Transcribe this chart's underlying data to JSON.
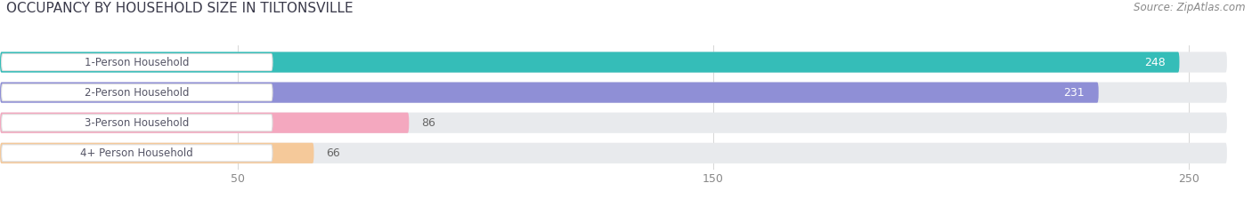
{
  "title": "OCCUPANCY BY HOUSEHOLD SIZE IN TILTONSVILLE",
  "source": "Source: ZipAtlas.com",
  "categories": [
    "1-Person Household",
    "2-Person Household",
    "3-Person Household",
    "4+ Person Household"
  ],
  "values": [
    248,
    231,
    86,
    66
  ],
  "bar_colors": [
    "#35bdb8",
    "#8f8fd6",
    "#f4a8bf",
    "#f5c99a"
  ],
  "bar_bg_color": "#e8eaed",
  "xlim_max": 258,
  "xticks": [
    50,
    150,
    250
  ],
  "figsize": [
    14.06,
    2.33
  ],
  "dpi": 100,
  "label_bg_color": "#ffffff",
  "title_fontsize": 11,
  "source_fontsize": 8.5,
  "bar_label_fontsize": 9,
  "category_fontsize": 8.5,
  "tick_fontsize": 9,
  "title_color": "#3a3a4a",
  "source_color": "#888888",
  "category_color": "#555566",
  "tick_color": "#888888",
  "value_color_inside": "#ffffff",
  "value_color_outside": "#666666"
}
